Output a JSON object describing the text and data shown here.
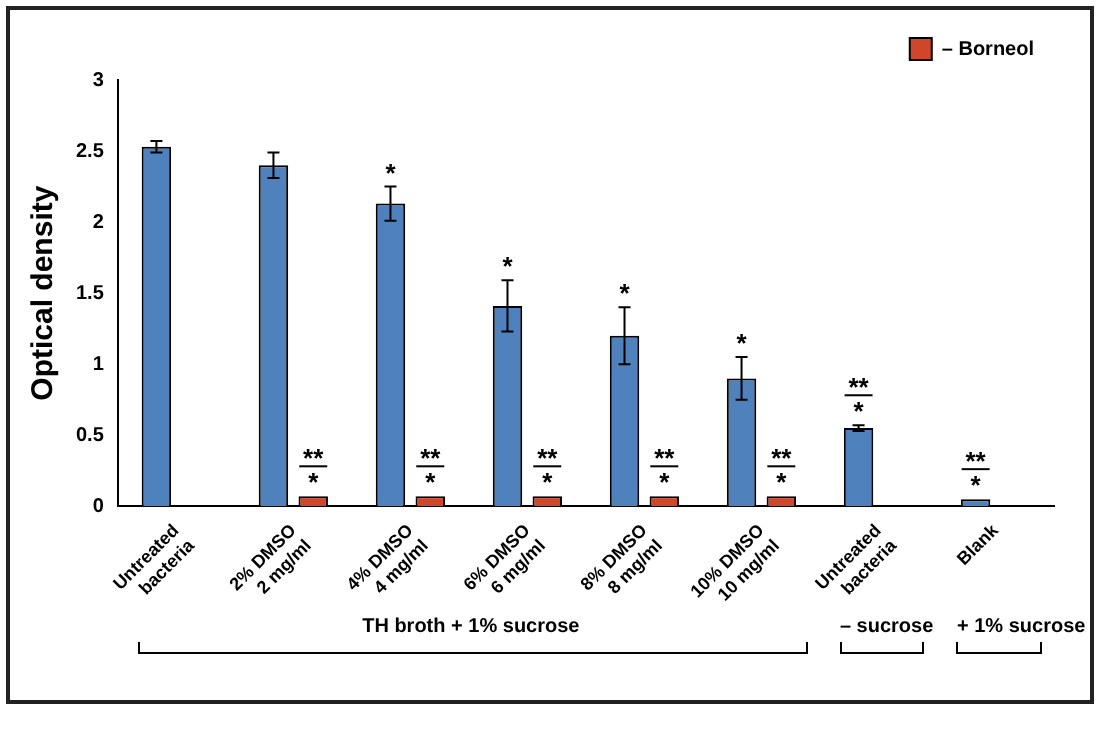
{
  "chart_data": {
    "type": "bar",
    "ylabel": "Optical density",
    "categories": [
      "Untreated\nbacteria",
      "2% DMSO\n2 mg/ml",
      "4% DMSO\n4 mg/ml",
      "6% DMSO\n6 mg/ml",
      "8% DMSO\n8 mg/ml",
      "10% DMSO\n10 mg/ml",
      "Untreated\nbacteria",
      "Blank"
    ],
    "series": [
      {
        "color": "#4f81bd",
        "values": [
          2.53,
          2.4,
          2.13,
          1.41,
          1.2,
          0.9,
          0.55,
          0.05
        ],
        "errors": [
          0.04,
          0.09,
          0.12,
          0.18,
          0.2,
          0.15,
          0.02,
          null
        ]
      },
      {
        "name": "– Borneol",
        "color": "#d0462a",
        "values": [
          null,
          0.07,
          0.07,
          0.07,
          0.07,
          0.07,
          null,
          null
        ]
      }
    ],
    "ylim": [
      0,
      3
    ],
    "yticks": [
      0,
      0.5,
      1,
      1.5,
      2,
      2.5,
      3
    ],
    "grid": false,
    "legend": "top right",
    "annotations": [
      {
        "text": "*",
        "x": "4% DMSO\n4 mg/ml",
        "y": 2.13
      },
      {
        "text": "*",
        "x": "6% DMSO\n6 mg/ml",
        "y": 1.41
      },
      {
        "text": "*",
        "x": "8% DMSO\n8 mg/ml",
        "y": 1.2
      },
      {
        "text": "*",
        "x": "10% DMSO\n10 mg/ml",
        "y": 0.9
      },
      {
        "text": "**",
        "x": "2% DMSO\n2 mg/ml",
        "y": 0.07
      },
      {
        "text": "*",
        "x": "2% DMSO\n2 mg/ml",
        "y": 0.07
      },
      {
        "text": "**",
        "x": "4% DMSO\n4 mg/ml",
        "y": 0.07
      },
      {
        "text": "*",
        "x": "4% DMSO\n4 mg/ml",
        "y": 0.07
      },
      {
        "text": "**",
        "x": "6% DMSO\n6 mg/ml",
        "y": 0.07
      },
      {
        "text": "*",
        "x": "6% DMSO\n6 mg/ml",
        "y": 0.07
      },
      {
        "text": "**",
        "x": "8% DMSO\n8 mg/ml",
        "y": 0.07
      },
      {
        "text": "*",
        "x": "8% DMSO\n8 mg/ml",
        "y": 0.07
      },
      {
        "text": "**",
        "x": "10% DMSO\n10 mg/ml",
        "y": 0.07
      },
      {
        "text": "*",
        "x": "10% DMSO\n10 mg/ml",
        "y": 0.07
      },
      "**",
      "*",
      {
        "text": "**",
        "x": "Blank",
        "y": 0.05
      },
      {
        "text": "*",
        "x": "Blank",
        "y": 0.05
      },
      "TH broth + 1% sucrose",
      "– sucrose",
      "+ 1% sucrose"
    ]
  }
}
